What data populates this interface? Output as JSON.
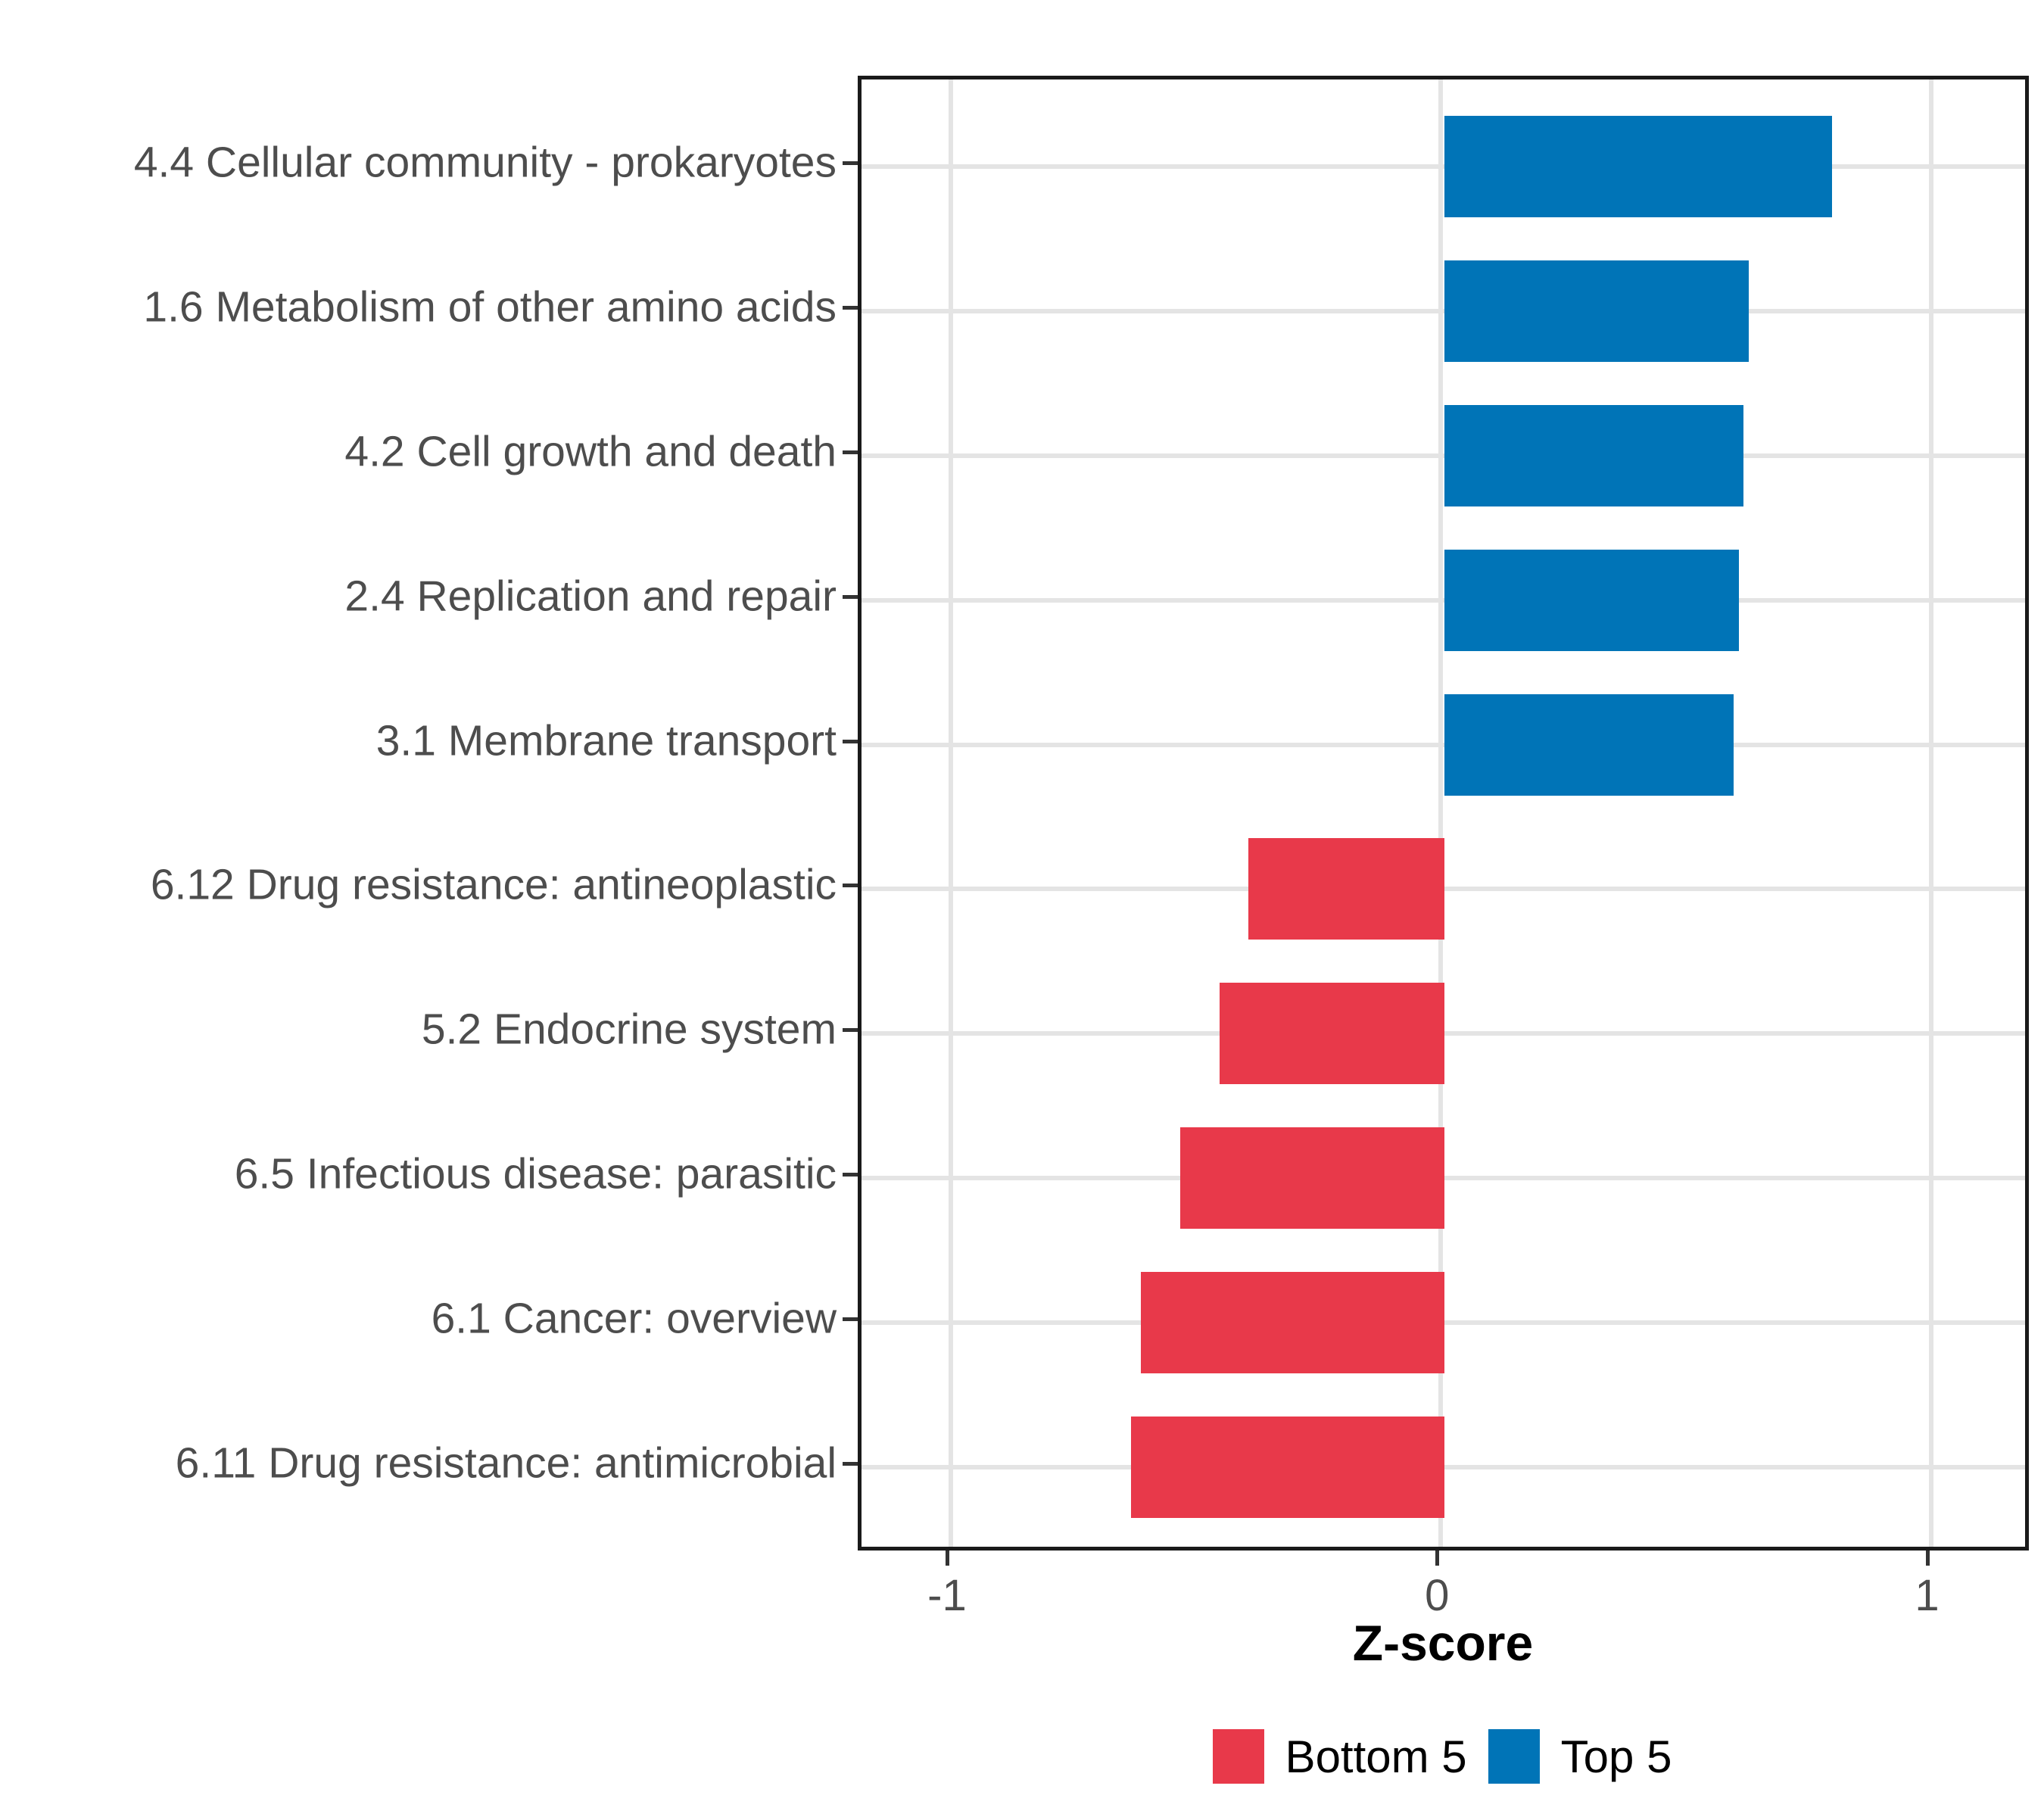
{
  "chart_data": {
    "type": "bar",
    "orientation": "horizontal",
    "title": "",
    "xlabel": "Z-score",
    "categories": [
      "4.4 Cellular community - prokaryotes",
      "1.6 Metabolism of other amino acids",
      "4.2 Cell growth and death",
      "2.4 Replication and repair",
      "3.1 Membrane transport",
      "6.12 Drug resistance: antineoplastic",
      "5.2 Endocrine system",
      "6.5 Infectious disease: parasitic",
      "6.1 Cancer: overview",
      "6.11 Drug resistance: antimicrobial"
    ],
    "values": [
      0.79,
      0.62,
      0.61,
      0.6,
      0.59,
      -0.4,
      -0.46,
      -0.54,
      -0.62,
      -0.64
    ],
    "groups": [
      "Top 5",
      "Top 5",
      "Top 5",
      "Top 5",
      "Top 5",
      "Bottom 5",
      "Bottom 5",
      "Bottom 5",
      "Bottom 5",
      "Bottom 5"
    ],
    "x_ticks": [
      -1,
      0,
      1
    ],
    "x_tick_labels": [
      "-1",
      "0",
      "1"
    ],
    "xlim": [
      -1.19,
      1.2
    ],
    "grid": "major-only",
    "legend_position": "bottom",
    "legend": [
      {
        "label": "Bottom 5",
        "color": "#E8394A"
      },
      {
        "label": "Top 5",
        "color": "#0074B7"
      }
    ],
    "colors": {
      "top5": "#0074B7",
      "bottom5": "#E8394A",
      "gridline": "#E4E4E4",
      "panel_border": "#1A1A1A",
      "tick": "#333333",
      "axis_text": "#4D4D4D",
      "title_text": "#000000"
    }
  }
}
